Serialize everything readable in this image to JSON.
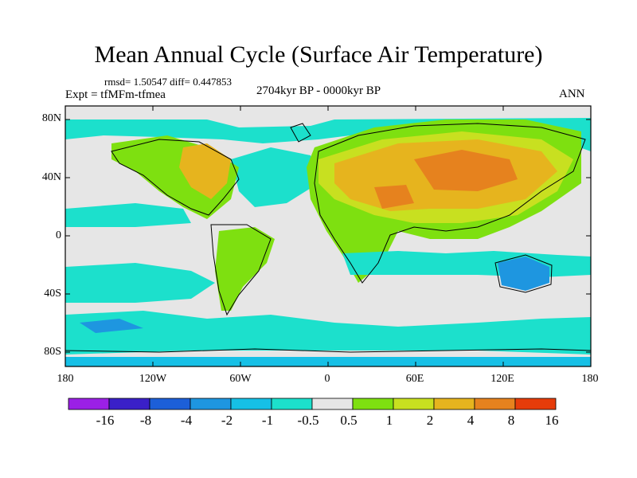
{
  "title": "Mean Annual Cycle (Surface Air Temperature)",
  "stats_text": "rmsd= 1.50547 diff= 0.447853",
  "experiment": "Expt = tfMFm-tfmea",
  "period": "2704kyr BP - 0000kyr BP",
  "season": "ANN",
  "lat_labels": [
    "80N",
    "40N",
    "0",
    "40S",
    "80S"
  ],
  "lon_labels": [
    "180",
    "120W",
    "60W",
    "0",
    "60E",
    "120E",
    "180"
  ],
  "colorbar": {
    "labels": [
      "-16",
      "-8",
      "-4",
      "-2",
      "-1",
      "-0.5",
      "0.5",
      "1",
      "2",
      "4",
      "8",
      "16"
    ],
    "colors": [
      "#9b20e6",
      "#3a20c8",
      "#1c5fd8",
      "#1e96e0",
      "#16c0e6",
      "#1ce0cc",
      "#e6e6e6",
      "#7ee010",
      "#c8e020",
      "#e6b41e",
      "#e6821e",
      "#e63c0a"
    ]
  }
}
